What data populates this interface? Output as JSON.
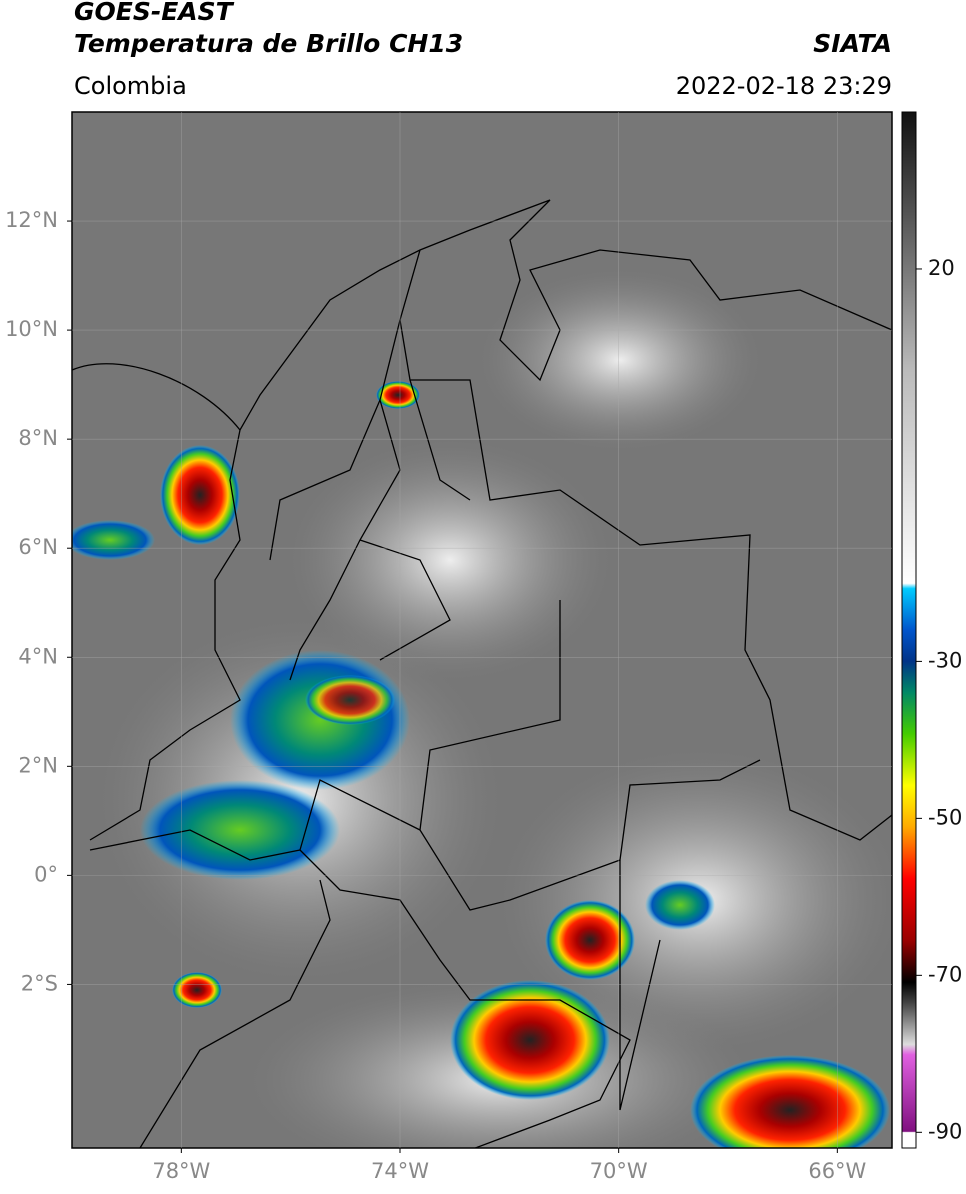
{
  "header": {
    "title": "GOES-EAST",
    "subtitle": "Temperatura de Brillo CH13",
    "source": "SIATA",
    "region": "Colombia",
    "datetime": "2022-02-18 23:29"
  },
  "map": {
    "xlim": [
      -80,
      -65
    ],
    "ylim": [
      -5,
      14
    ],
    "xticks": [
      {
        "value": -78,
        "label": "78°W"
      },
      {
        "value": -74,
        "label": "74°W"
      },
      {
        "value": -70,
        "label": "70°W"
      },
      {
        "value": -66,
        "label": "66°W"
      }
    ],
    "yticks": [
      {
        "value": 12,
        "label": "12°N"
      },
      {
        "value": 10,
        "label": "10°N"
      },
      {
        "value": 8,
        "label": "8°N"
      },
      {
        "value": 6,
        "label": "6°N"
      },
      {
        "value": 4,
        "label": "4°N"
      },
      {
        "value": 2,
        "label": "2°N"
      },
      {
        "value": 0,
        "label": "0°"
      },
      {
        "value": -2,
        "label": "2°S"
      }
    ]
  },
  "colorbar": {
    "lim": [
      -92,
      40
    ],
    "ticks": [
      20,
      -30,
      -50,
      -70,
      -90
    ]
  }
}
